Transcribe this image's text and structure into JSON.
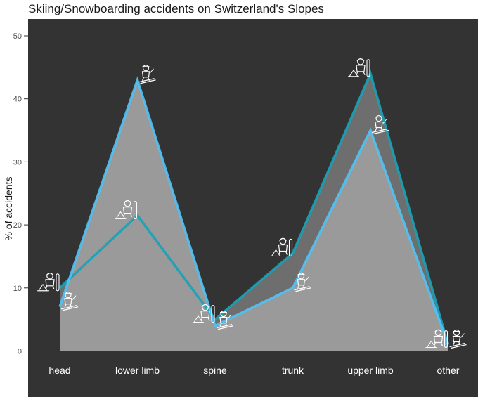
{
  "chart_data": {
    "type": "area",
    "title": "Skiing/Snowboarding accidents on Switzerland's Slopes",
    "xlabel": "",
    "ylabel": "% of accidents",
    "categories": [
      "head",
      "lower limb",
      "spine",
      "trunk",
      "upper limb",
      "other"
    ],
    "ylim": [
      -2,
      54
    ],
    "yticks": [
      0,
      10,
      20,
      30,
      40,
      50
    ],
    "grid": false,
    "series": [
      {
        "values": [
          10,
          21.5,
          5,
          15.5,
          44,
          1
        ],
        "icon": "snowboarder-icon",
        "line_color": "#17a2b8",
        "fill_color": "#6e6e6e"
      },
      {
        "values": [
          7,
          43,
          4,
          10,
          35,
          1
        ],
        "icon": "skier-icon",
        "line_color": "#4fc3f7",
        "fill_color": "#9a9a9a"
      }
    ],
    "background": "#333333"
  }
}
